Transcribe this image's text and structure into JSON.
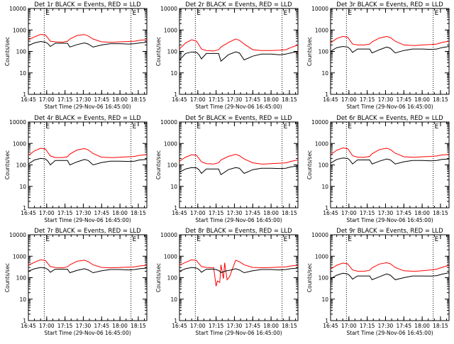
{
  "figure": {
    "xlabel": "Start Time (29-Nov-06 16:45:00)",
    "ylabel": "Counts/sec",
    "x_tick_labels": [
      "16:45",
      "17:00",
      "17:15",
      "17:30",
      "17:45",
      "18:00",
      "18:15"
    ],
    "y_tick_labels": [
      "1",
      "10",
      "100",
      "1000",
      "10000"
    ],
    "marker_label_left": "E",
    "marker_label_right": "E",
    "colors": {
      "events": "#000000",
      "lld": "#ff0000",
      "axes": "#000000",
      "background": "#ffffff"
    }
  },
  "chart_data": [
    {
      "type": "line",
      "title": "Det 1r BLACK = Events, RED = LLD",
      "xlabel": "Start Time (29-Nov-06 16:45:00)",
      "ylabel": "Counts/sec",
      "xlim": [
        "16:45",
        "18:22"
      ],
      "ylim": [
        1,
        10000
      ],
      "yscale": "log",
      "vlines": [
        "16:58",
        "18:09"
      ],
      "x_minutes": [
        0,
        5,
        10,
        14,
        16,
        18,
        22,
        28,
        32,
        34,
        40,
        46,
        49,
        53,
        60,
        67,
        70,
        75,
        82,
        87,
        91,
        97
      ],
      "series": [
        {
          "name": "LLD",
          "color": "red",
          "values": [
            350,
            480,
            620,
            580,
            420,
            300,
            280,
            270,
            300,
            380,
            560,
            610,
            520,
            380,
            280,
            270,
            270,
            280,
            290,
            300,
            330,
            350
          ]
        },
        {
          "name": "Events",
          "color": "black",
          "values": [
            190,
            250,
            290,
            270,
            230,
            170,
            240,
            240,
            240,
            160,
            210,
            250,
            220,
            160,
            200,
            230,
            230,
            230,
            220,
            230,
            250,
            270
          ]
        }
      ]
    },
    {
      "type": "line",
      "title": "Det 2r BLACK = Events, RED = LLD",
      "xlabel": "Start Time (29-Nov-06 16:45:00)",
      "ylabel": "Counts/sec",
      "xlim": [
        "16:45",
        "18:22"
      ],
      "ylim": [
        1,
        10000
      ],
      "yscale": "log",
      "vlines": [
        "16:58",
        "18:09"
      ],
      "x_minutes": [
        0,
        5,
        10,
        14,
        16,
        18,
        22,
        28,
        32,
        34,
        40,
        46,
        49,
        53,
        60,
        67,
        70,
        75,
        82,
        87,
        91,
        97
      ],
      "series": [
        {
          "name": "LLD",
          "color": "red",
          "values": [
            130,
            250,
            350,
            300,
            200,
            130,
            110,
            105,
            120,
            160,
            260,
            380,
            330,
            220,
            120,
            110,
            110,
            110,
            115,
            120,
            150,
            200
          ]
        },
        {
          "name": "Events",
          "color": "black",
          "values": [
            40,
            80,
            95,
            90,
            70,
            45,
            80,
            80,
            80,
            35,
            70,
            95,
            85,
            40,
            60,
            75,
            75,
            75,
            70,
            75,
            85,
            100
          ]
        }
      ]
    },
    {
      "type": "line",
      "title": "Det 3r BLACK = Events, RED = LLD",
      "xlabel": "Start Time (29-Nov-06 16:45:00)",
      "ylabel": "Counts/sec",
      "xlim": [
        "16:45",
        "18:22"
      ],
      "ylim": [
        1,
        10000
      ],
      "yscale": "log",
      "vlines": [
        "16:58",
        "18:09"
      ],
      "x_minutes": [
        0,
        5,
        10,
        14,
        16,
        18,
        22,
        28,
        32,
        34,
        40,
        46,
        49,
        53,
        60,
        67,
        70,
        75,
        82,
        87,
        91,
        97
      ],
      "series": [
        {
          "name": "LLD",
          "color": "red",
          "values": [
            250,
            400,
            500,
            460,
            320,
            220,
            200,
            200,
            220,
            280,
            420,
            500,
            440,
            300,
            200,
            190,
            190,
            200,
            210,
            220,
            260,
            300
          ]
        },
        {
          "name": "Events",
          "color": "black",
          "values": [
            100,
            150,
            170,
            160,
            130,
            90,
            130,
            130,
            130,
            85,
            120,
            160,
            140,
            85,
            110,
            130,
            130,
            130,
            125,
            130,
            150,
            170
          ]
        }
      ]
    },
    {
      "type": "line",
      "title": "Det 4r BLACK = Events, RED = LLD",
      "xlabel": "Start Time (29-Nov-06 16:45:00)",
      "ylabel": "Counts/sec",
      "xlim": [
        "16:45",
        "18:22"
      ],
      "ylim": [
        1,
        10000
      ],
      "yscale": "log",
      "vlines": [
        "16:58",
        "18:09"
      ],
      "x_minutes": [
        0,
        5,
        10,
        14,
        16,
        18,
        22,
        28,
        32,
        34,
        40,
        46,
        49,
        53,
        60,
        67,
        70,
        75,
        82,
        87,
        91,
        97
      ],
      "series": [
        {
          "name": "LLD",
          "color": "red",
          "values": [
            280,
            450,
            600,
            550,
            380,
            260,
            220,
            220,
            240,
            320,
            500,
            580,
            500,
            340,
            230,
            220,
            220,
            230,
            240,
            250,
            280,
            300
          ]
        },
        {
          "name": "Events",
          "color": "black",
          "values": [
            110,
            170,
            200,
            190,
            150,
            100,
            160,
            160,
            160,
            100,
            140,
            180,
            160,
            100,
            130,
            150,
            150,
            150,
            145,
            150,
            170,
            180
          ]
        }
      ]
    },
    {
      "type": "line",
      "title": "Det 5r BLACK = Events, RED = LLD",
      "xlabel": "Start Time (29-Nov-06 16:45:00)",
      "ylabel": "Counts/sec",
      "xlim": [
        "16:45",
        "18:22"
      ],
      "ylim": [
        1,
        10000
      ],
      "yscale": "log",
      "vlines": [
        "16:58",
        "18:09"
      ],
      "x_minutes": [
        0,
        5,
        10,
        14,
        16,
        18,
        22,
        28,
        32,
        34,
        40,
        46,
        49,
        53,
        60,
        67,
        70,
        75,
        82,
        87,
        91,
        97
      ],
      "series": [
        {
          "name": "LLD",
          "color": "red",
          "values": [
            150,
            230,
            300,
            280,
            200,
            140,
            115,
            110,
            125,
            170,
            250,
            310,
            270,
            190,
            125,
            110,
            110,
            115,
            120,
            125,
            145,
            170
          ]
        },
        {
          "name": "Events",
          "color": "black",
          "values": [
            45,
            65,
            75,
            72,
            60,
            40,
            65,
            65,
            65,
            35,
            60,
            75,
            70,
            40,
            60,
            70,
            70,
            70,
            68,
            70,
            80,
            90
          ]
        }
      ]
    },
    {
      "type": "line",
      "title": "Det 6r BLACK = Events, RED = LLD",
      "xlabel": "Start Time (29-Nov-06 16:45:00)",
      "ylabel": "Counts/sec",
      "xlim": [
        "16:45",
        "18:22"
      ],
      "ylim": [
        1,
        10000
      ],
      "yscale": "log",
      "vlines": [
        "16:58",
        "18:09"
      ],
      "x_minutes": [
        0,
        5,
        10,
        14,
        16,
        18,
        22,
        28,
        32,
        34,
        40,
        46,
        49,
        53,
        60,
        67,
        70,
        75,
        82,
        87,
        91,
        97
      ],
      "series": [
        {
          "name": "LLD",
          "color": "red",
          "values": [
            300,
            480,
            620,
            570,
            400,
            270,
            230,
            230,
            250,
            330,
            520,
            600,
            520,
            350,
            240,
            230,
            230,
            240,
            250,
            260,
            290,
            310
          ]
        },
        {
          "name": "Events",
          "color": "black",
          "values": [
            120,
            180,
            210,
            200,
            160,
            110,
            170,
            170,
            170,
            110,
            150,
            190,
            170,
            110,
            140,
            160,
            160,
            160,
            155,
            160,
            180,
            190
          ]
        }
      ]
    },
    {
      "type": "line",
      "title": "Det 7r BLACK = Events, RED = LLD",
      "xlabel": "Start Time (29-Nov-06 16:45:00)",
      "ylabel": "Counts/sec",
      "xlim": [
        "16:45",
        "18:22"
      ],
      "ylim": [
        1,
        10000
      ],
      "yscale": "log",
      "vlines": [
        "16:58",
        "18:09"
      ],
      "x_minutes": [
        0,
        5,
        10,
        14,
        16,
        18,
        22,
        28,
        32,
        34,
        40,
        46,
        49,
        53,
        60,
        67,
        70,
        75,
        82,
        87,
        91,
        97
      ],
      "series": [
        {
          "name": "LLD",
          "color": "red",
          "values": [
            380,
            520,
            680,
            630,
            450,
            330,
            300,
            290,
            320,
            400,
            590,
            650,
            560,
            400,
            300,
            290,
            290,
            300,
            310,
            320,
            350,
            380
          ]
        },
        {
          "name": "Events",
          "color": "black",
          "values": [
            200,
            260,
            300,
            280,
            240,
            180,
            250,
            250,
            250,
            170,
            220,
            260,
            230,
            170,
            210,
            240,
            240,
            240,
            230,
            240,
            260,
            280
          ]
        }
      ]
    },
    {
      "type": "line",
      "title": "Det 8r BLACK = Events, RED = LLD",
      "xlabel": "Start Time (29-Nov-06 16:45:00)",
      "ylabel": "Counts/sec",
      "xlim": [
        "16:45",
        "18:22"
      ],
      "ylim": [
        1,
        10000
      ],
      "yscale": "log",
      "vlines": [
        "16:58",
        "18:09"
      ],
      "x_minutes": [
        0,
        5,
        10,
        14,
        16,
        18,
        22,
        28,
        30,
        31,
        33,
        34,
        36,
        37,
        39,
        41,
        46,
        49,
        53,
        60,
        67,
        70,
        75,
        82,
        87,
        91,
        97
      ],
      "series": [
        {
          "name": "LLD",
          "color": "red",
          "values": [
            380,
            520,
            680,
            630,
            450,
            330,
            300,
            290,
            40,
            70,
            60,
            400,
            90,
            500,
            80,
            110,
            650,
            560,
            400,
            300,
            290,
            290,
            300,
            310,
            320,
            350,
            380
          ]
        },
        {
          "name": "Events",
          "color": "black",
          "values": [
            200,
            260,
            300,
            280,
            240,
            180,
            250,
            250,
            240,
            230,
            200,
            170,
            190,
            200,
            210,
            220,
            260,
            230,
            170,
            210,
            240,
            240,
            240,
            230,
            240,
            260,
            280
          ]
        }
      ]
    },
    {
      "type": "line",
      "title": "Det 9r BLACK = Events, RED = LLD",
      "xlabel": "Start Time (29-Nov-06 16:45:00)",
      "ylabel": "Counts/sec",
      "xlim": [
        "16:45",
        "18:22"
      ],
      "ylim": [
        1,
        10000
      ],
      "yscale": "log",
      "vlines": [
        "16:58",
        "18:09"
      ],
      "x_minutes": [
        0,
        5,
        10,
        14,
        16,
        18,
        22,
        28,
        32,
        34,
        40,
        46,
        49,
        53,
        60,
        67,
        70,
        75,
        82,
        87,
        91,
        97
      ],
      "series": [
        {
          "name": "LLD",
          "color": "red",
          "values": [
            250,
            380,
            480,
            440,
            320,
            230,
            200,
            200,
            220,
            290,
            430,
            500,
            440,
            300,
            210,
            200,
            200,
            210,
            230,
            250,
            300,
            380
          ]
        },
        {
          "name": "Events",
          "color": "black",
          "values": [
            90,
            130,
            160,
            150,
            120,
            85,
            120,
            120,
            120,
            80,
            110,
            150,
            130,
            80,
            100,
            120,
            120,
            120,
            118,
            125,
            145,
            170
          ]
        }
      ]
    }
  ]
}
